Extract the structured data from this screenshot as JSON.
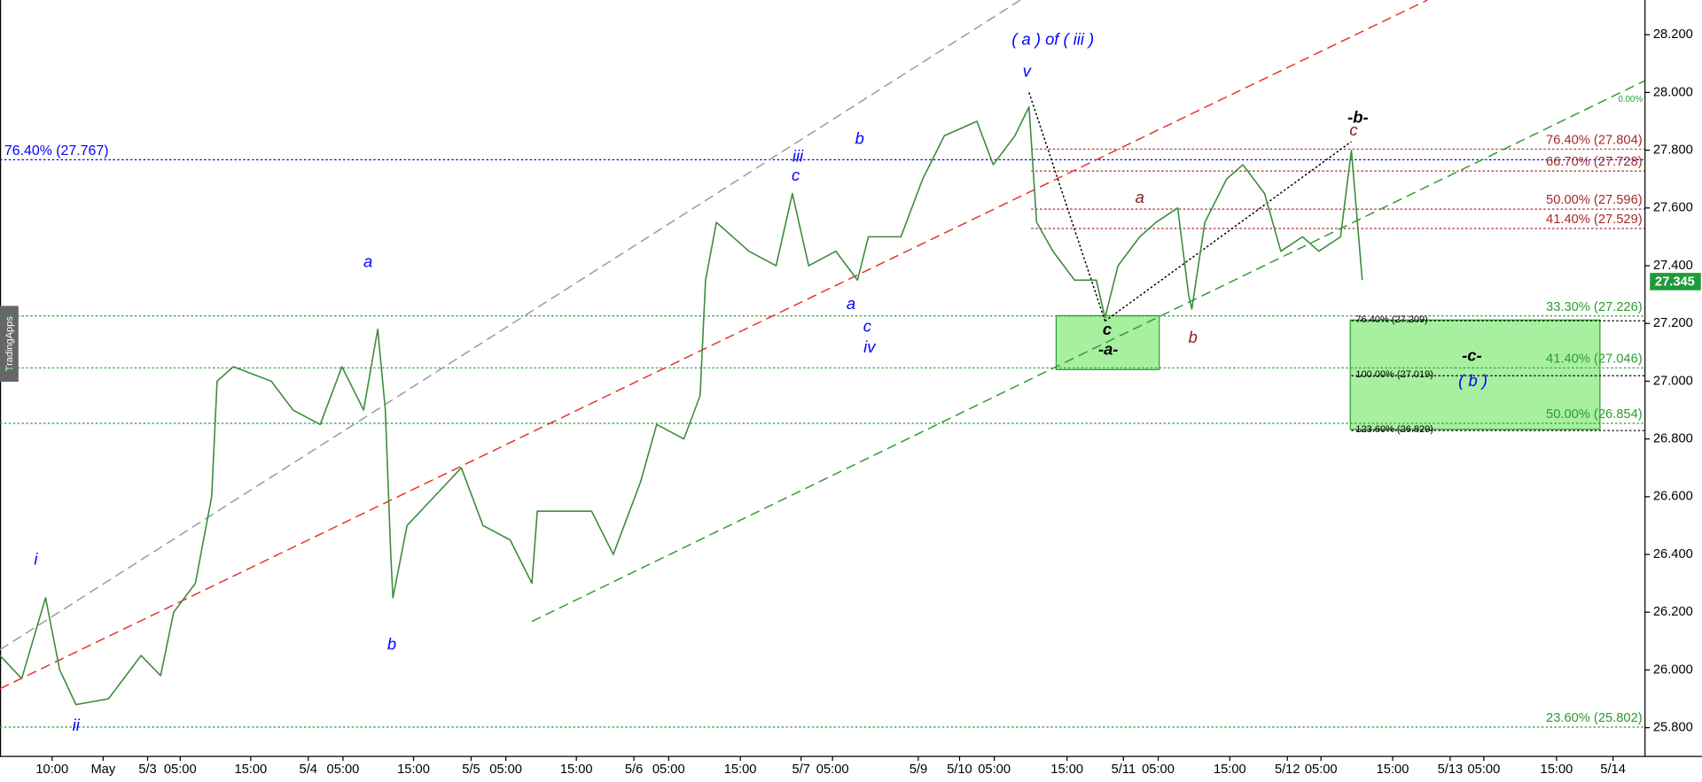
{
  "chart_data": {
    "type": "line",
    "watermark": "TradingApps",
    "x": [
      0,
      20,
      42,
      55,
      70,
      100,
      130,
      148,
      160,
      180,
      195,
      200,
      215,
      250,
      270,
      295,
      315,
      335,
      348,
      355,
      360,
      362,
      375,
      400,
      425,
      445,
      470,
      490,
      495,
      520,
      545,
      565,
      580,
      590,
      605,
      630,
      645,
      650,
      660,
      690,
      715,
      730,
      745,
      770,
      790,
      800,
      830,
      850,
      870,
      900,
      915,
      935,
      948,
      955,
      970,
      990,
      1010,
      1018,
      1030,
      1050,
      1065,
      1085,
      1095,
      1098,
      1110,
      1130,
      1145,
      1165,
      1180,
      1200,
      1215,
      1235,
      1245,
      1255
    ],
    "series": [
      {
        "color": "#3c8c3c",
        "values": [
          26.05,
          25.97,
          26.25,
          26.0,
          25.88,
          25.9,
          26.05,
          25.98,
          26.2,
          26.3,
          26.6,
          27.0,
          27.05,
          27.0,
          26.9,
          26.85,
          27.05,
          26.9,
          27.18,
          26.9,
          26.4,
          26.25,
          26.5,
          26.6,
          26.7,
          26.5,
          26.45,
          26.3,
          26.55,
          26.55,
          26.55,
          26.4,
          26.55,
          26.65,
          26.85,
          26.8,
          26.95,
          27.35,
          27.55,
          27.45,
          27.4,
          27.65,
          27.4,
          27.45,
          27.35,
          27.5,
          27.5,
          27.7,
          27.85,
          27.9,
          27.75,
          27.85,
          27.95,
          27.55,
          27.45,
          27.35,
          27.35,
          27.22,
          27.4,
          27.5,
          27.55,
          27.6,
          27.3,
          27.25,
          27.55,
          27.7,
          27.75,
          27.65,
          27.45,
          27.5,
          27.45,
          27.5,
          27.8,
          27.35
        ]
      }
    ],
    "xlim": [
      0,
      1515
    ],
    "ylim": [
      25.7,
      28.32
    ],
    "xticks": [
      {
        "value": 48,
        "label": "10:00"
      },
      {
        "value": 95,
        "label": "May"
      },
      {
        "value": 136,
        "label": "5/3"
      },
      {
        "value": 166,
        "label": "05:00"
      },
      {
        "value": 231,
        "label": "15:00"
      },
      {
        "value": 284,
        "label": "5/4"
      },
      {
        "value": 316,
        "label": "05:00"
      },
      {
        "value": 381,
        "label": "15:00"
      },
      {
        "value": 434,
        "label": "5/5"
      },
      {
        "value": 466,
        "label": "05:00"
      },
      {
        "value": 531,
        "label": "15:00"
      },
      {
        "value": 584,
        "label": "5/6"
      },
      {
        "value": 616,
        "label": "05:00"
      },
      {
        "value": 682,
        "label": "15:00"
      },
      {
        "value": 738,
        "label": "5/7"
      },
      {
        "value": 767,
        "label": "05:00"
      },
      {
        "value": 846,
        "label": "5/9"
      },
      {
        "value": 884,
        "label": "5/10"
      },
      {
        "value": 916,
        "label": "05:00"
      },
      {
        "value": 983,
        "label": "15:00"
      },
      {
        "value": 1035,
        "label": "5/11"
      },
      {
        "value": 1067,
        "label": "05:00"
      },
      {
        "value": 1133,
        "label": "15:00"
      },
      {
        "value": 1186,
        "label": "5/12"
      },
      {
        "value": 1217,
        "label": "05:00"
      },
      {
        "value": 1283,
        "label": "15:00"
      },
      {
        "value": 1336,
        "label": "5/13"
      },
      {
        "value": 1367,
        "label": "05:00"
      },
      {
        "value": 1434,
        "label": "15:00"
      },
      {
        "value": 1486,
        "label": "5/14"
      }
    ],
    "yticks": [
      {
        "value": 25.8,
        "label": "25.800"
      },
      {
        "value": 26.0,
        "label": "26.000"
      },
      {
        "value": 26.2,
        "label": "26.200"
      },
      {
        "value": 26.4,
        "label": "26.400"
      },
      {
        "value": 26.6,
        "label": "26.600"
      },
      {
        "value": 26.8,
        "label": "26.800"
      },
      {
        "value": 27.0,
        "label": "27.000"
      },
      {
        "value": 27.2,
        "label": "27.200"
      },
      {
        "value": 27.4,
        "label": "27.400"
      },
      {
        "value": 27.6,
        "label": "27.600"
      },
      {
        "value": 27.8,
        "label": "27.800"
      },
      {
        "value": 28.0,
        "label": "28.000"
      },
      {
        "value": 28.2,
        "label": "28.200"
      }
    ],
    "last_price": 27.345,
    "fib_levels": [
      {
        "label": "76.40% (27.767)",
        "value": 27.767,
        "color": "#0000ff",
        "x_start": 0,
        "anchor": "start"
      },
      {
        "label": "76.40% (27.804)",
        "value": 27.804,
        "color": "#a52a2a",
        "x_start": 950,
        "anchor": "end"
      },
      {
        "label": "66.70% (27.728)",
        "value": 27.728,
        "color": "#a52a2a",
        "x_start": 950,
        "anchor": "end"
      },
      {
        "label": "50.00% (27.596)",
        "value": 27.596,
        "color": "#a52a2a",
        "x_start": 950,
        "anchor": "end"
      },
      {
        "label": "41.40% (27.529)",
        "value": 27.529,
        "color": "#a52a2a",
        "x_start": 950,
        "anchor": "end"
      },
      {
        "label": "33.30% (27.226)",
        "value": 27.226,
        "color": "#2e9b2e",
        "x_start": 0,
        "anchor": "end"
      },
      {
        "label": "41.40% (27.046)",
        "value": 27.046,
        "color": "#2e9b2e",
        "x_start": 0,
        "anchor": "end"
      },
      {
        "label": "50.00% (26.854)",
        "value": 26.854,
        "color": "#2e9b2e",
        "x_start": 0,
        "anchor": "end"
      },
      {
        "label": "23.60% (25.802)",
        "value": 25.802,
        "color": "#2e9b2e",
        "x_start": 0,
        "anchor": "end"
      },
      {
        "label": "76.40% (27.209)",
        "value": 27.209,
        "color": "#000000",
        "x_start": 1245,
        "anchor": "start"
      },
      {
        "label": "100.00% (27.019)",
        "value": 27.019,
        "color": "#000000",
        "x_start": 1245,
        "anchor": "start"
      },
      {
        "label": "123.60% (26.829)",
        "value": 26.829,
        "color": "#000000",
        "x_start": 1245,
        "anchor": "start"
      }
    ],
    "trend_lines": [
      {
        "x": [
          0,
          940
        ],
        "y": [
          26.07,
          28.32
        ],
        "color": "#999999",
        "dash": "dashed"
      },
      {
        "x": [
          0,
          1315
        ],
        "y": [
          25.935,
          28.32
        ],
        "color": "#e8302a",
        "dash": "dashed"
      },
      {
        "x": [
          490,
          1515
        ],
        "y": [
          26.168,
          28.04
        ],
        "color": "#2e9b2e",
        "dash": "dashed"
      },
      {
        "x": [
          948,
          1018
        ],
        "y": [
          28.0,
          27.208
        ],
        "color": "#000000",
        "dash": "dotted"
      },
      {
        "x": [
          1018,
          1245
        ],
        "y": [
          27.208,
          27.83
        ],
        "color": "#000000",
        "dash": "dotted"
      }
    ],
    "zones": [
      {
        "x": [
          973,
          1068
        ],
        "y": [
          27.227,
          27.04
        ],
        "color": "#a6f0a0"
      },
      {
        "x": [
          1244,
          1474
        ],
        "y": [
          27.212,
          26.833
        ],
        "color": "#a6f0a0"
      }
    ],
    "annotations": [
      {
        "text": "( a ) of ( iii )",
        "x": 970,
        "y": 28.18,
        "color": "#0000ff"
      },
      {
        "text": "v",
        "x": 946,
        "y": 28.07,
        "color": "#0000ff"
      },
      {
        "text": "iii",
        "x": 735,
        "y": 27.776,
        "color": "#0000ff"
      },
      {
        "text": "c",
        "x": 733,
        "y": 27.71,
        "color": "#0000ff"
      },
      {
        "text": "b",
        "x": 792,
        "y": 27.836,
        "color": "#0000ff"
      },
      {
        "text": "a",
        "x": 339,
        "y": 27.41,
        "color": "#0000ff"
      },
      {
        "text": "a",
        "x": 784,
        "y": 27.265,
        "color": "#0000ff"
      },
      {
        "text": "c",
        "x": 799,
        "y": 27.186,
        "color": "#0000ff"
      },
      {
        "text": "iv",
        "x": 801,
        "y": 27.115,
        "color": "#0000ff"
      },
      {
        "text": "b",
        "x": 361,
        "y": 26.085,
        "color": "#0000ff"
      },
      {
        "text": "i",
        "x": 33,
        "y": 26.38,
        "color": "#0000ff"
      },
      {
        "text": "ii",
        "x": 70,
        "y": 25.804,
        "color": "#0000ff"
      },
      {
        "text": "a",
        "x": 1050,
        "y": 27.633,
        "color": "#8b1a1a"
      },
      {
        "text": "b",
        "x": 1099,
        "y": 27.148,
        "color": "#8b1a1a"
      },
      {
        "text": "c",
        "x": 1247,
        "y": 27.866,
        "color": "#8b1a1a"
      },
      {
        "text": "-b-",
        "x": 1251,
        "y": 27.91,
        "color": "#000000"
      },
      {
        "text": "c",
        "x": 1020,
        "y": 27.175,
        "color": "#000000"
      },
      {
        "text": "-a-",
        "x": 1021,
        "y": 27.107,
        "color": "#000000"
      },
      {
        "text": "-c-",
        "x": 1356,
        "y": 27.085,
        "color": "#000000"
      },
      {
        "text": "( b )",
        "x": 1357,
        "y": 26.998,
        "color": "#0000ff"
      },
      {
        "text": "0.00%",
        "x": 1502,
        "y": 27.975,
        "color": "#2e9b2e"
      }
    ]
  }
}
